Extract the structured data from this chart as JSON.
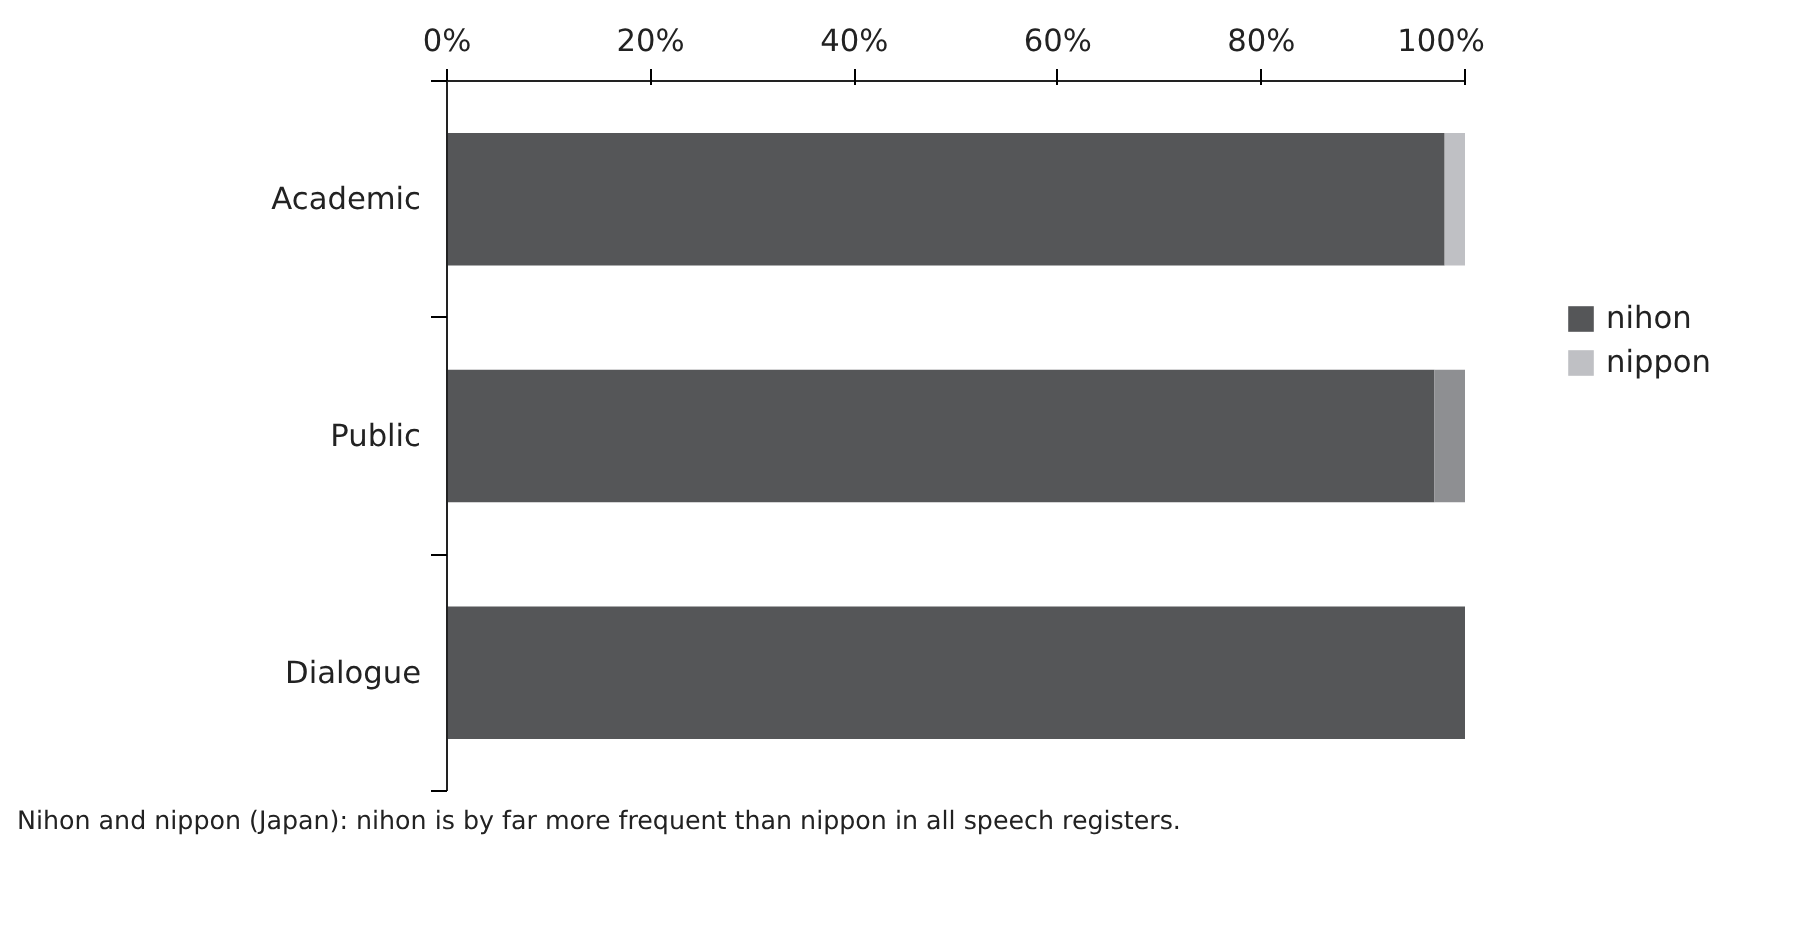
{
  "chart_data": {
    "type": "bar",
    "orientation": "horizontal",
    "stacked": true,
    "categories": [
      "Academic",
      "Public",
      "Dialogue"
    ],
    "series": [
      {
        "name": "nihon",
        "color": "#555658",
        "values": [
          98,
          97,
          100
        ]
      },
      {
        "name": "nippon",
        "color": "#bfc0c4",
        "colors": [
          "#bfc0c4",
          "#8e8f92",
          "#bfc0c4"
        ],
        "values": [
          2,
          3,
          0
        ]
      }
    ],
    "xlim": [
      0,
      100
    ],
    "xticks": [
      {
        "value": 0,
        "label": "0%"
      },
      {
        "value": 20,
        "label": "20%"
      },
      {
        "value": 40,
        "label": "40%"
      },
      {
        "value": 60,
        "label": "60%"
      },
      {
        "value": 80,
        "label": "80%"
      },
      {
        "value": 100,
        "label": "100%"
      }
    ],
    "grid": false,
    "legend": "right",
    "annotations": [
      "Nihon and nippon (Japan): nihon is by far more frequent than nippon in all speech registers."
    ]
  }
}
